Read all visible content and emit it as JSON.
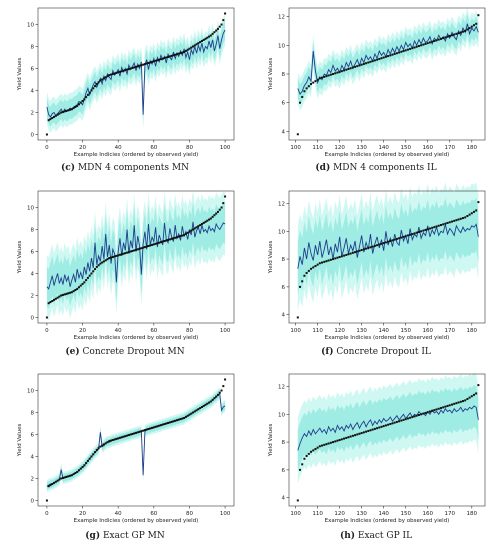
{
  "chart_data": [
    {
      "id": "c",
      "type": "line",
      "caption_letter": "(c)",
      "caption_text": "MDN 4 components MN",
      "xlabel": "Example Indicies (ordered by observed yield)",
      "ylabel": "Yield Values",
      "xlim": [
        -5,
        105
      ],
      "ylim": [
        -0.5,
        11.5
      ],
      "xticks": [
        0,
        20,
        40,
        60,
        80,
        100
      ],
      "yticks": [
        0,
        2,
        4,
        6,
        8,
        10
      ],
      "x_start": 0,
      "observed": [
        0.0,
        1.3,
        1.4,
        1.5,
        1.6,
        1.7,
        1.8,
        1.9,
        2.0,
        2.05,
        2.1,
        2.15,
        2.2,
        2.25,
        2.3,
        2.4,
        2.5,
        2.6,
        2.75,
        2.9,
        3.05,
        3.2,
        3.4,
        3.6,
        3.8,
        4.0,
        4.2,
        4.4,
        4.6,
        4.75,
        4.9,
        5.0,
        5.1,
        5.2,
        5.3,
        5.4,
        5.45,
        5.5,
        5.55,
        5.6,
        5.65,
        5.7,
        5.75,
        5.8,
        5.85,
        5.9,
        5.95,
        6.0,
        6.05,
        6.1,
        6.15,
        6.2,
        6.25,
        6.3,
        6.35,
        6.4,
        6.45,
        6.5,
        6.55,
        6.6,
        6.65,
        6.7,
        6.75,
        6.8,
        6.85,
        6.9,
        6.95,
        7.0,
        7.05,
        7.1,
        7.15,
        7.2,
        7.25,
        7.3,
        7.35,
        7.4,
        7.45,
        7.5,
        7.6,
        7.7,
        7.8,
        7.9,
        8.0,
        8.1,
        8.2,
        8.3,
        8.4,
        8.5,
        8.6,
        8.7,
        8.8,
        8.9,
        9.0,
        9.15,
        9.3,
        9.45,
        9.6,
        9.8,
        10.0,
        10.4,
        11.0
      ],
      "prediction": [
        2.5,
        1.8,
        1.6,
        1.9,
        2.0,
        1.7,
        1.9,
        2.1,
        2.3,
        2.0,
        2.3,
        2.1,
        2.2,
        2.4,
        2.3,
        2.5,
        2.6,
        2.7,
        3.0,
        2.9,
        2.7,
        3.2,
        3.8,
        4.2,
        3.6,
        4.1,
        4.5,
        4.8,
        4.3,
        4.7,
        5.1,
        4.6,
        5.3,
        4.9,
        5.5,
        5.2,
        5.0,
        5.8,
        5.4,
        5.6,
        5.9,
        5.3,
        6.1,
        5.7,
        6.0,
        5.5,
        6.3,
        5.9,
        6.2,
        6.5,
        5.8,
        6.4,
        6.0,
        6.6,
        1.8,
        6.3,
        6.8,
        5.9,
        6.7,
        6.4,
        6.9,
        6.2,
        7.0,
        6.6,
        7.2,
        6.8,
        7.1,
        6.5,
        7.3,
        7.0,
        6.8,
        7.5,
        6.9,
        7.4,
        7.1,
        7.6,
        7.2,
        7.8,
        7.0,
        7.5,
        6.8,
        7.7,
        7.3,
        8.0,
        7.4,
        8.1,
        7.6,
        8.3,
        7.5,
        8.0,
        7.8,
        8.5,
        7.9,
        8.6,
        7.6,
        8.2,
        9.0,
        7.8,
        8.6,
        9.2,
        9.5
      ],
      "band_halfwidth": 0.9
    },
    {
      "id": "d",
      "type": "line",
      "caption_letter": "(d)",
      "caption_text": "MDN 4 components IL",
      "xlabel": "Example Indicies (ordered by observed yield)",
      "ylabel": "Yield Values",
      "xlim": [
        97,
        186
      ],
      "ylim": [
        3.4,
        12.6
      ],
      "xticks": [
        100,
        110,
        120,
        130,
        140,
        150,
        160,
        170,
        180
      ],
      "yticks": [
        4,
        6,
        8,
        10,
        12
      ],
      "x_start": 101,
      "observed": [
        3.8,
        6.0,
        6.4,
        6.8,
        7.0,
        7.15,
        7.3,
        7.4,
        7.5,
        7.6,
        7.7,
        7.75,
        7.8,
        7.85,
        7.9,
        7.95,
        8.0,
        8.05,
        8.1,
        8.15,
        8.2,
        8.25,
        8.3,
        8.35,
        8.4,
        8.45,
        8.5,
        8.55,
        8.6,
        8.65,
        8.7,
        8.75,
        8.8,
        8.85,
        8.9,
        8.95,
        9.0,
        9.05,
        9.1,
        9.15,
        9.2,
        9.25,
        9.3,
        9.35,
        9.4,
        9.45,
        9.5,
        9.55,
        9.6,
        9.65,
        9.7,
        9.75,
        9.8,
        9.85,
        9.9,
        9.95,
        10.0,
        10.05,
        10.1,
        10.15,
        10.2,
        10.25,
        10.3,
        10.35,
        10.4,
        10.45,
        10.5,
        10.55,
        10.6,
        10.65,
        10.7,
        10.75,
        10.8,
        10.85,
        10.9,
        10.95,
        11.0,
        11.1,
        11.2,
        11.3,
        11.4,
        11.5,
        12.1
      ],
      "prediction": [
        7.0,
        6.6,
        6.8,
        7.2,
        7.4,
        7.8,
        7.5,
        9.6,
        8.2,
        7.4,
        7.8,
        7.6,
        8.0,
        7.9,
        8.3,
        8.1,
        8.6,
        8.2,
        8.4,
        8.1,
        8.6,
        8.3,
        8.8,
        8.5,
        8.9,
        8.4,
        8.7,
        9.0,
        8.6,
        9.1,
        8.8,
        9.3,
        9.0,
        9.2,
        8.9,
        9.4,
        9.1,
        9.6,
        9.3,
        9.5,
        9.2,
        9.7,
        9.4,
        9.8,
        9.5,
        9.9,
        9.6,
        10.0,
        9.7,
        10.2,
        9.9,
        10.1,
        9.8,
        10.3,
        10.0,
        10.4,
        10.1,
        10.5,
        10.2,
        10.3,
        10.6,
        10.1,
        10.5,
        10.3,
        10.7,
        10.4,
        10.6,
        10.3,
        10.8,
        10.5,
        10.9,
        10.6,
        10.4,
        11.0,
        10.7,
        11.2,
        10.9,
        11.5,
        10.8,
        11.2,
        11.0,
        11.3,
        10.9
      ],
      "band_halfwidth": 0.7
    },
    {
      "id": "e",
      "type": "line",
      "caption_letter": "(e)",
      "caption_text": "Concrete Dropout MN",
      "xlabel": "Example Indicies (ordered by observed yield)",
      "ylabel": "Yield Values",
      "xlim": [
        -5,
        105
      ],
      "ylim": [
        -0.5,
        11.5
      ],
      "xticks": [
        0,
        20,
        40,
        60,
        80,
        100
      ],
      "yticks": [
        0,
        2,
        4,
        6,
        8,
        10
      ],
      "x_start": 0,
      "observed": [
        0.0,
        1.3,
        1.4,
        1.5,
        1.6,
        1.7,
        1.8,
        1.9,
        2.0,
        2.05,
        2.1,
        2.15,
        2.2,
        2.25,
        2.3,
        2.4,
        2.5,
        2.6,
        2.75,
        2.9,
        3.05,
        3.2,
        3.4,
        3.6,
        3.8,
        4.0,
        4.2,
        4.4,
        4.6,
        4.75,
        4.9,
        5.0,
        5.1,
        5.2,
        5.3,
        5.4,
        5.45,
        5.5,
        5.55,
        5.6,
        5.65,
        5.7,
        5.75,
        5.8,
        5.85,
        5.9,
        5.95,
        6.0,
        6.05,
        6.1,
        6.15,
        6.2,
        6.25,
        6.3,
        6.35,
        6.4,
        6.45,
        6.5,
        6.55,
        6.6,
        6.65,
        6.7,
        6.75,
        6.8,
        6.85,
        6.9,
        6.95,
        7.0,
        7.05,
        7.1,
        7.15,
        7.2,
        7.25,
        7.3,
        7.35,
        7.4,
        7.45,
        7.5,
        7.6,
        7.7,
        7.8,
        7.9,
        8.0,
        8.1,
        8.2,
        8.3,
        8.4,
        8.5,
        8.6,
        8.7,
        8.8,
        8.9,
        9.0,
        9.15,
        9.3,
        9.45,
        9.6,
        9.8,
        10.0,
        10.4,
        11.0
      ],
      "prediction": [
        2.8,
        2.6,
        3.2,
        3.8,
        2.9,
        3.5,
        4.0,
        3.1,
        3.6,
        3.0,
        3.9,
        3.3,
        3.7,
        2.8,
        3.4,
        3.9,
        3.2,
        4.4,
        3.6,
        4.1,
        3.5,
        4.6,
        3.9,
        5.0,
        4.2,
        5.4,
        4.5,
        6.8,
        4.8,
        5.6,
        5.1,
        6.5,
        5.3,
        7.6,
        5.5,
        6.6,
        4.9,
        6.2,
        5.8,
        3.2,
        6.0,
        7.2,
        5.6,
        6.8,
        6.1,
        8.0,
        5.8,
        7.0,
        6.3,
        8.4,
        6.0,
        7.4,
        6.5,
        3.9,
        6.7,
        7.8,
        6.2,
        8.5,
        6.6,
        7.3,
        6.9,
        8.2,
        6.4,
        7.5,
        7.0,
        6.6,
        8.6,
        7.1,
        6.8,
        8.1,
        7.3,
        6.9,
        8.4,
        7.2,
        7.6,
        7.0,
        8.3,
        7.4,
        7.8,
        7.1,
        8.0,
        7.5,
        8.7,
        7.3,
        7.9,
        8.2,
        7.6,
        8.4,
        7.8,
        8.0,
        7.7,
        8.3,
        7.9,
        8.1,
        7.8,
        8.5,
        8.2,
        8.0,
        8.3,
        8.6,
        8.5
      ],
      "band_halfwidth": 1.8
    },
    {
      "id": "f",
      "type": "line",
      "caption_letter": "(f)",
      "caption_text": "Concrete Dropout IL",
      "xlabel": "Example Indicies (ordered by observed yield)",
      "ylabel": "Yield Values",
      "xlim": [
        97,
        186
      ],
      "ylim": [
        3.4,
        12.9
      ],
      "xticks": [
        100,
        110,
        120,
        130,
        140,
        150,
        160,
        170,
        180
      ],
      "yticks": [
        4,
        6,
        8,
        10,
        12
      ],
      "x_start": 101,
      "observed": [
        3.8,
        6.0,
        6.4,
        6.8,
        7.0,
        7.15,
        7.3,
        7.4,
        7.5,
        7.6,
        7.7,
        7.75,
        7.8,
        7.85,
        7.9,
        7.95,
        8.0,
        8.05,
        8.1,
        8.15,
        8.2,
        8.25,
        8.3,
        8.35,
        8.4,
        8.45,
        8.5,
        8.55,
        8.6,
        8.65,
        8.7,
        8.75,
        8.8,
        8.85,
        8.9,
        8.95,
        9.0,
        9.05,
        9.1,
        9.15,
        9.2,
        9.25,
        9.3,
        9.35,
        9.4,
        9.45,
        9.5,
        9.55,
        9.6,
        9.65,
        9.7,
        9.75,
        9.8,
        9.85,
        9.9,
        9.95,
        10.0,
        10.05,
        10.1,
        10.15,
        10.2,
        10.25,
        10.3,
        10.35,
        10.4,
        10.45,
        10.5,
        10.55,
        10.6,
        10.65,
        10.7,
        10.75,
        10.8,
        10.85,
        10.9,
        10.95,
        11.0,
        11.1,
        11.2,
        11.3,
        11.4,
        11.5,
        12.1
      ],
      "prediction": [
        7.3,
        8.2,
        7.6,
        8.8,
        8.0,
        9.2,
        8.4,
        7.9,
        9.0,
        8.3,
        9.3,
        8.1,
        8.7,
        9.4,
        8.3,
        8.9,
        8.0,
        9.1,
        8.5,
        9.6,
        8.2,
        8.8,
        9.5,
        8.4,
        9.0,
        8.6,
        9.3,
        8.1,
        8.9,
        9.7,
        8.5,
        9.2,
        8.7,
        9.8,
        8.4,
        9.1,
        9.6,
        8.8,
        9.4,
        8.6,
        10.0,
        9.0,
        9.5,
        8.9,
        9.8,
        9.2,
        9.0,
        10.1,
        9.3,
        9.7,
        9.1,
        10.2,
        9.4,
        9.8,
        9.6,
        10.3,
        9.5,
        9.9,
        9.7,
        10.4,
        9.6,
        10.1,
        9.8,
        10.3,
        9.7,
        10.0,
        9.9,
        10.5,
        9.8,
        10.2,
        10.0,
        9.7,
        10.4,
        10.1,
        9.9,
        10.3,
        10.0,
        10.2,
        10.1,
        10.4,
        10.3,
        10.5,
        9.6
      ],
      "band_halfwidth": 1.9
    },
    {
      "id": "g",
      "type": "line",
      "caption_letter": "(g)",
      "caption_text": "Exact GP MN",
      "xlabel": "Example Indicies (ordered by observed yield)",
      "ylabel": "Yield Values",
      "xlim": [
        -5,
        105
      ],
      "ylim": [
        -0.5,
        11.5
      ],
      "xticks": [
        0,
        20,
        40,
        60,
        80,
        100
      ],
      "yticks": [
        0,
        2,
        4,
        6,
        8,
        10
      ],
      "x_start": 0,
      "observed": [
        0.0,
        1.3,
        1.4,
        1.5,
        1.6,
        1.7,
        1.8,
        1.9,
        2.0,
        2.05,
        2.1,
        2.15,
        2.2,
        2.25,
        2.3,
        2.4,
        2.5,
        2.6,
        2.75,
        2.9,
        3.05,
        3.2,
        3.4,
        3.6,
        3.8,
        4.0,
        4.2,
        4.4,
        4.6,
        4.75,
        4.9,
        5.0,
        5.1,
        5.2,
        5.3,
        5.4,
        5.45,
        5.5,
        5.55,
        5.6,
        5.65,
        5.7,
        5.75,
        5.8,
        5.85,
        5.9,
        5.95,
        6.0,
        6.05,
        6.1,
        6.15,
        6.2,
        6.25,
        6.3,
        6.35,
        6.4,
        6.45,
        6.5,
        6.55,
        6.6,
        6.65,
        6.7,
        6.75,
        6.8,
        6.85,
        6.9,
        6.95,
        7.0,
        7.05,
        7.1,
        7.15,
        7.2,
        7.25,
        7.3,
        7.35,
        7.4,
        7.45,
        7.5,
        7.6,
        7.7,
        7.8,
        7.9,
        8.0,
        8.1,
        8.2,
        8.3,
        8.4,
        8.5,
        8.6,
        8.7,
        8.8,
        8.9,
        9.0,
        9.15,
        9.3,
        9.45,
        9.6,
        9.8,
        10.0,
        10.4,
        11.0
      ],
      "prediction": [
        1.3,
        1.4,
        1.5,
        1.5,
        1.6,
        1.7,
        1.8,
        1.9,
        2.8,
        2.0,
        2.1,
        2.1,
        2.2,
        2.2,
        2.3,
        2.4,
        2.5,
        2.6,
        2.7,
        2.9,
        3.0,
        3.2,
        3.4,
        3.6,
        3.8,
        4.0,
        4.2,
        4.4,
        4.5,
        4.7,
        6.2,
        4.9,
        5.0,
        5.2,
        5.3,
        5.3,
        5.4,
        5.5,
        5.5,
        5.6,
        5.6,
        5.7,
        5.7,
        5.8,
        5.8,
        5.9,
        5.9,
        6.0,
        6.0,
        6.1,
        6.1,
        6.2,
        6.2,
        6.3,
        2.3,
        6.3,
        6.4,
        6.5,
        6.5,
        6.6,
        6.6,
        6.7,
        6.7,
        6.8,
        6.8,
        6.9,
        6.9,
        7.0,
        7.0,
        7.1,
        7.1,
        7.2,
        7.2,
        7.3,
        7.3,
        7.4,
        7.4,
        7.5,
        7.6,
        7.7,
        7.8,
        7.9,
        8.0,
        8.1,
        8.2,
        8.3,
        8.4,
        8.5,
        8.6,
        8.7,
        8.8,
        8.9,
        9.0,
        9.1,
        9.3,
        9.4,
        9.6,
        9.7,
        8.2,
        8.5,
        8.6
      ],
      "band_halfwidth": 0.35
    },
    {
      "id": "h",
      "type": "line",
      "caption_letter": "(h)",
      "caption_text": "Exact GP IL",
      "xlabel": "Example Indicies (ordered by observed yield)",
      "ylabel": "Yield Values",
      "xlim": [
        97,
        186
      ],
      "ylim": [
        3.4,
        12.9
      ],
      "xticks": [
        100,
        110,
        120,
        130,
        140,
        150,
        160,
        170,
        180
      ],
      "yticks": [
        4,
        6,
        8,
        10,
        12
      ],
      "x_start": 101,
      "observed": [
        3.8,
        6.0,
        6.4,
        6.8,
        7.0,
        7.15,
        7.3,
        7.4,
        7.5,
        7.6,
        7.7,
        7.75,
        7.8,
        7.85,
        7.9,
        7.95,
        8.0,
        8.05,
        8.1,
        8.15,
        8.2,
        8.25,
        8.3,
        8.35,
        8.4,
        8.45,
        8.5,
        8.55,
        8.6,
        8.65,
        8.7,
        8.75,
        8.8,
        8.85,
        8.9,
        8.95,
        9.0,
        9.05,
        9.1,
        9.15,
        9.2,
        9.25,
        9.3,
        9.35,
        9.4,
        9.45,
        9.5,
        9.55,
        9.6,
        9.65,
        9.7,
        9.75,
        9.8,
        9.85,
        9.9,
        9.95,
        10.0,
        10.05,
        10.1,
        10.15,
        10.2,
        10.25,
        10.3,
        10.35,
        10.4,
        10.45,
        10.5,
        10.55,
        10.6,
        10.65,
        10.7,
        10.75,
        10.8,
        10.85,
        10.9,
        10.95,
        11.0,
        11.1,
        11.2,
        11.3,
        11.4,
        11.5,
        12.1
      ],
      "prediction": [
        7.4,
        7.9,
        8.3,
        8.6,
        8.4,
        8.8,
        8.5,
        8.9,
        8.6,
        8.8,
        9.0,
        8.7,
        8.9,
        8.6,
        9.1,
        8.8,
        9.0,
        8.7,
        9.2,
        8.9,
        9.1,
        8.8,
        9.2,
        9.0,
        9.3,
        8.9,
        9.2,
        9.4,
        9.0,
        9.3,
        9.5,
        9.1,
        9.4,
        9.6,
        9.2,
        9.5,
        9.3,
        9.6,
        9.4,
        9.7,
        9.5,
        9.6,
        9.8,
        9.5,
        9.7,
        9.9,
        9.6,
        9.8,
        10.0,
        9.7,
        9.9,
        10.1,
        9.8,
        10.0,
        9.9,
        10.2,
        10.0,
        10.1,
        9.9,
        10.2,
        10.0,
        10.3,
        10.1,
        10.2,
        10.0,
        10.3,
        10.1,
        10.4,
        10.2,
        10.3,
        10.1,
        10.4,
        10.2,
        10.3,
        10.5,
        10.2,
        10.4,
        10.3,
        10.5,
        10.4,
        10.6,
        10.5,
        9.6
      ],
      "band_halfwidth": 1.5
    }
  ],
  "colors": {
    "prediction_line": "#1f3d8c",
    "observed_markers": "#111111",
    "band_outer": "#bff5ee",
    "band_inner": "#8ee8dd",
    "axes": "#333333"
  }
}
